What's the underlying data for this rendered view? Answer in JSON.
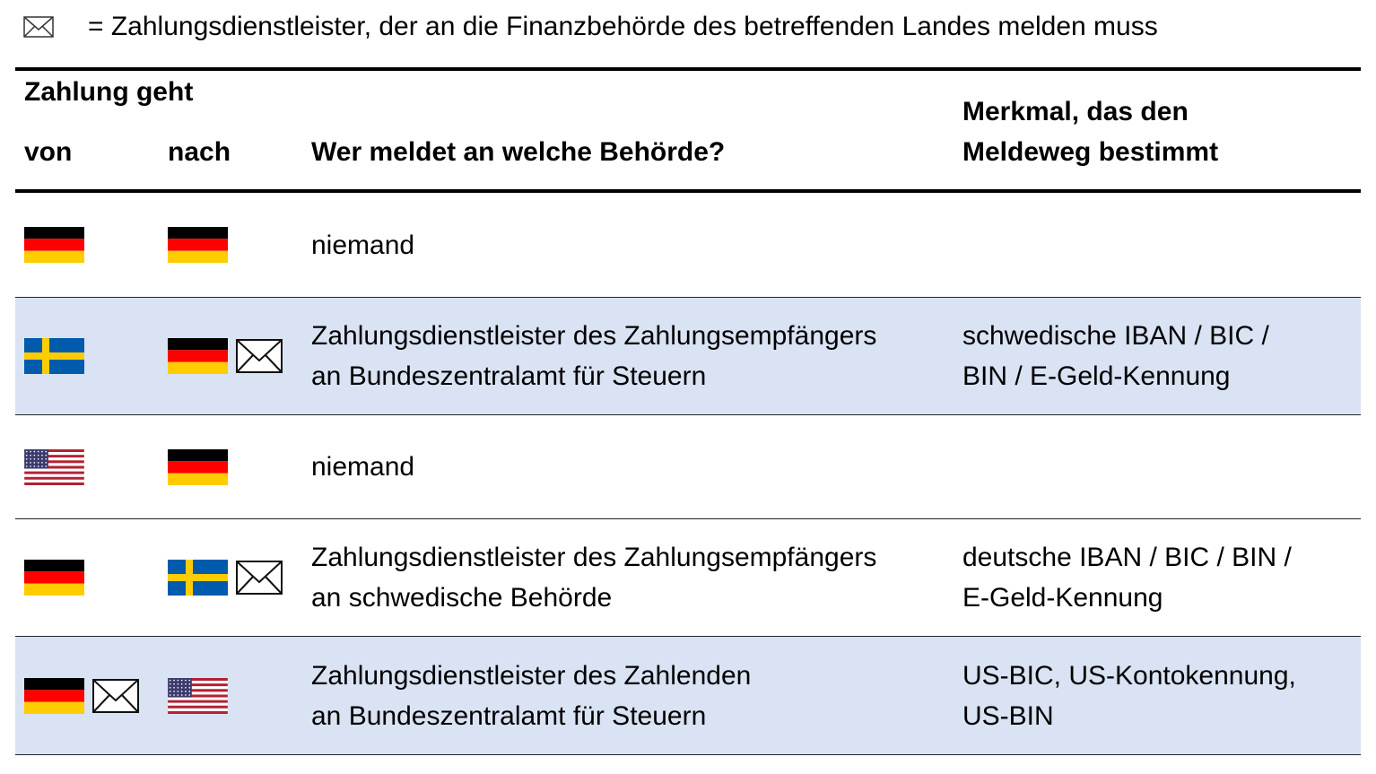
{
  "legend": {
    "icon": "envelope-icon",
    "text": "= Zahlungsdienstleister, der an die Finanzbehörde des betreffenden Landes melden muss"
  },
  "header": {
    "group": "Zahlung geht",
    "von": "von",
    "nach": "nach",
    "wer": "Wer meldet an welche Behörde?",
    "merkmal_1": "Merkmal, das den",
    "merkmal_2": "Meldeweg bestimmt"
  },
  "colors": {
    "row_highlight": "#dae3f3"
  },
  "rows": [
    {
      "von": "germany",
      "nach": "germany",
      "envelope": "none",
      "wer_1": "niemand",
      "wer_2": "",
      "merkmal_1": "",
      "merkmal_2": "",
      "highlight": false
    },
    {
      "von": "sweden",
      "nach": "germany",
      "envelope": "nach",
      "wer_1": "Zahlungsdienstleister des Zahlungsempfängers",
      "wer_2": "an Bundeszentralamt für Steuern",
      "merkmal_1": "schwedische IBAN / BIC /",
      "merkmal_2": "BIN / E-Geld-Kennung",
      "highlight": true
    },
    {
      "von": "usa",
      "nach": "germany",
      "envelope": "none",
      "wer_1": "niemand",
      "wer_2": "",
      "merkmal_1": "",
      "merkmal_2": "",
      "highlight": false
    },
    {
      "von": "germany",
      "nach": "sweden",
      "envelope": "nach",
      "wer_1": "Zahlungsdienstleister des Zahlungsempfängers",
      "wer_2": "an schwedische Behörde",
      "merkmal_1": "deutsche IBAN / BIC / BIN /",
      "merkmal_2": "E-Geld-Kennung",
      "highlight": false
    },
    {
      "von": "germany",
      "nach": "usa",
      "envelope": "von",
      "wer_1": "Zahlungsdienstleister des Zahlenden",
      "wer_2": "an Bundeszentralamt für Steuern",
      "merkmal_1": "US-BIC, US-Kontokennung,",
      "merkmal_2": "US-BIN",
      "highlight": true
    }
  ]
}
